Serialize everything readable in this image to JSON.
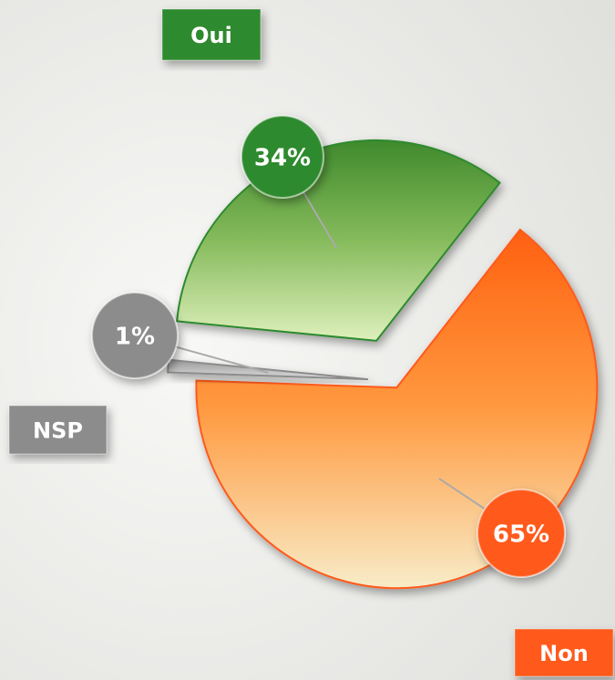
{
  "chart_data": {
    "type": "pie",
    "categories": [
      "Non",
      "NSP",
      "Oui"
    ],
    "values": [
      65,
      1,
      34
    ],
    "value_labels": [
      "65%",
      "1%",
      "34%"
    ],
    "colors": [
      "#ff5a1a",
      "#8c8c8c",
      "#2f8a2f"
    ]
  }
}
